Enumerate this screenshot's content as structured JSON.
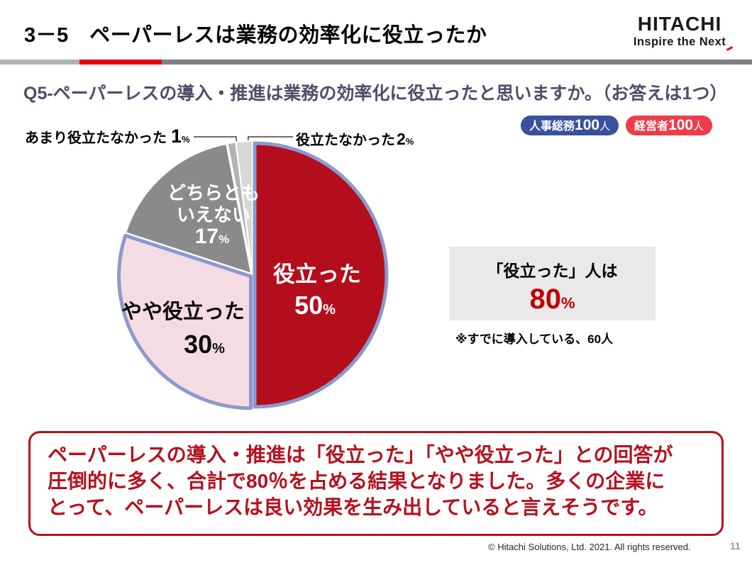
{
  "header": {
    "title": "3－5　ペーパーレスは業務の効率化に役立ったか",
    "logo_word": "HITACHI",
    "logo_slogan": "Inspire the Next"
  },
  "question": "Q5-ペーパーレスの導入・推進は業務の効率化に役立ったと思いますか。（お答えは1つ）",
  "badges": [
    {
      "prefix": "人事総務",
      "count": "100",
      "suffix": "人",
      "color": "#3a4f9e"
    },
    {
      "prefix": "経営者",
      "count": "100",
      "suffix": "人",
      "color": "#ee3c4a"
    }
  ],
  "chart_data": {
    "type": "pie",
    "unit": "%",
    "start_angle_deg": 0,
    "direction": "clockwise",
    "legend_position": "in-slice labels + callouts",
    "slices": [
      {
        "key": "helped",
        "label": "役立った",
        "value": 50,
        "color": "#b40e1c",
        "outline": "#8b99cf",
        "text_color": "#ffffff"
      },
      {
        "key": "somewhat-helped",
        "label": "やや役立った",
        "value": 30,
        "color": "#f5dce2",
        "outline": "#8b99cf",
        "text_color": "#000000"
      },
      {
        "key": "neither",
        "label": "どちらともいえない",
        "value": 17,
        "color": "#8a8a8a",
        "text_color": "#ffffff"
      },
      {
        "key": "not-very-helpful",
        "label": "あまり役立たなかった",
        "value": 1,
        "color": "#b3b3b3",
        "callout": true
      },
      {
        "key": "not-helpful",
        "label": "役立たなかった",
        "value": 2,
        "color": "#d7d7d7",
        "callout": true
      }
    ]
  },
  "highlight_box": {
    "line1": "「役立った」人は",
    "value": "80",
    "unit": "%"
  },
  "note": "※すでに導入している、60人",
  "summary_box": {
    "lines": [
      "ペーパーレスの導入・推進は「役立った」「やや役立った」との回答が",
      "圧倒的に多く、合計で80％を占める結果となりました。多くの企業に",
      "とって、ペーパーレスは良い効果を生み出していると言えそうです。"
    ]
  },
  "footer": {
    "copyright": "© Hitachi Solutions, Ltd. 2021. All rights reserved.",
    "page": "11"
  },
  "accent": {
    "hitachi_red": "#e60012",
    "summary_red": "#b5101e",
    "highlight_red": "#c00000",
    "question_color": "#4f4d68",
    "pie_ring_blue": "#8b99cf",
    "callout_line": "#3f3f3f"
  }
}
